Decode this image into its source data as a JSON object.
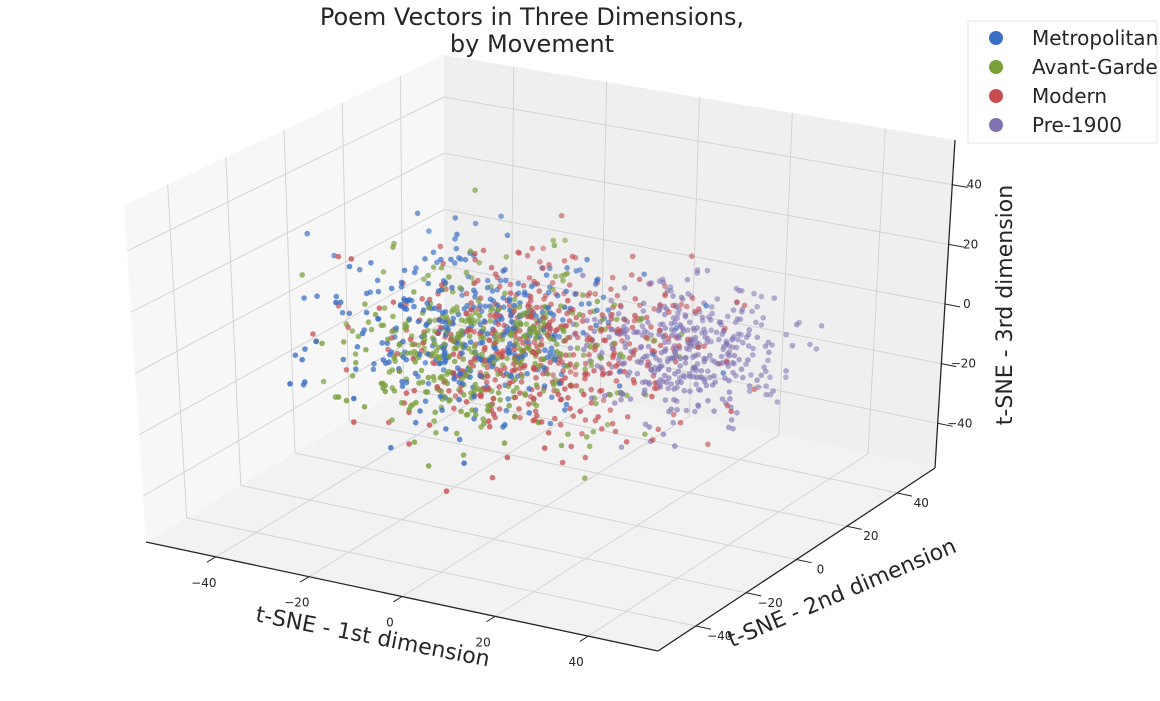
{
  "chart_data": {
    "type": "scatter",
    "title_lines": [
      "Poem Vectors in Three Dimensions,",
      "by Movement"
    ],
    "xlabel": "t-SNE - 1st dimension",
    "ylabel": "t-SNE - 2nd dimension",
    "zlabel": "t-SNE - 3rd dimension",
    "x_ticks": [
      -40,
      -20,
      0,
      20,
      40
    ],
    "y_ticks": [
      -40,
      -20,
      0,
      20,
      40
    ],
    "z_ticks": [
      -40,
      -20,
      0,
      20,
      40
    ],
    "xlim": [
      -55,
      55
    ],
    "ylim": [
      -55,
      55
    ],
    "zlim": [
      -55,
      55
    ],
    "grid": true,
    "legend_position": "top-right",
    "series": [
      {
        "name": "Metropolitan",
        "color": "#3a6fc4",
        "point_count": 360,
        "center": [
          -10,
          -8,
          5
        ],
        "spread": [
          24,
          22,
          22
        ],
        "sample_points": [
          [
            -30,
            -20,
            10
          ],
          [
            -15,
            -5,
            25
          ],
          [
            -5,
            -30,
            -5
          ],
          [
            5,
            10,
            15
          ],
          [
            -25,
            5,
            -20
          ],
          [
            0,
            -15,
            30
          ],
          [
            -20,
            -25,
            0
          ],
          [
            10,
            -10,
            -15
          ]
        ]
      },
      {
        "name": "Avant-Garde",
        "color": "#7aa03a",
        "point_count": 400,
        "center": [
          -8,
          -10,
          0
        ],
        "spread": [
          24,
          22,
          22
        ],
        "sample_points": [
          [
            -35,
            -10,
            -10
          ],
          [
            -10,
            -25,
            20
          ],
          [
            0,
            0,
            5
          ],
          [
            15,
            -20,
            -20
          ],
          [
            -20,
            10,
            15
          ],
          [
            -5,
            -35,
            -25
          ],
          [
            5,
            -5,
            35
          ],
          [
            -30,
            -30,
            5
          ]
        ]
      },
      {
        "name": "Modern",
        "color": "#c44e52",
        "point_count": 460,
        "center": [
          0,
          -2,
          -2
        ],
        "spread": [
          26,
          24,
          22
        ],
        "sample_points": [
          [
            -20,
            0,
            0
          ],
          [
            10,
            10,
            -10
          ],
          [
            25,
            -10,
            20
          ],
          [
            -10,
            20,
            -25
          ],
          [
            0,
            -20,
            -35
          ],
          [
            30,
            15,
            5
          ],
          [
            -35,
            -15,
            25
          ],
          [
            15,
            -30,
            10
          ]
        ]
      },
      {
        "name": "Pre-1900",
        "color": "#8172b2",
        "point_count": 380,
        "center": [
          20,
          18,
          -8
        ],
        "spread": [
          16,
          17,
          18
        ],
        "sample_points": [
          [
            25,
            25,
            -10
          ],
          [
            35,
            10,
            0
          ],
          [
            15,
            30,
            -20
          ],
          [
            30,
            20,
            15
          ],
          [
            20,
            5,
            -30
          ],
          [
            40,
            30,
            -5
          ],
          [
            10,
            25,
            10
          ],
          [
            28,
            35,
            -25
          ]
        ]
      }
    ]
  }
}
